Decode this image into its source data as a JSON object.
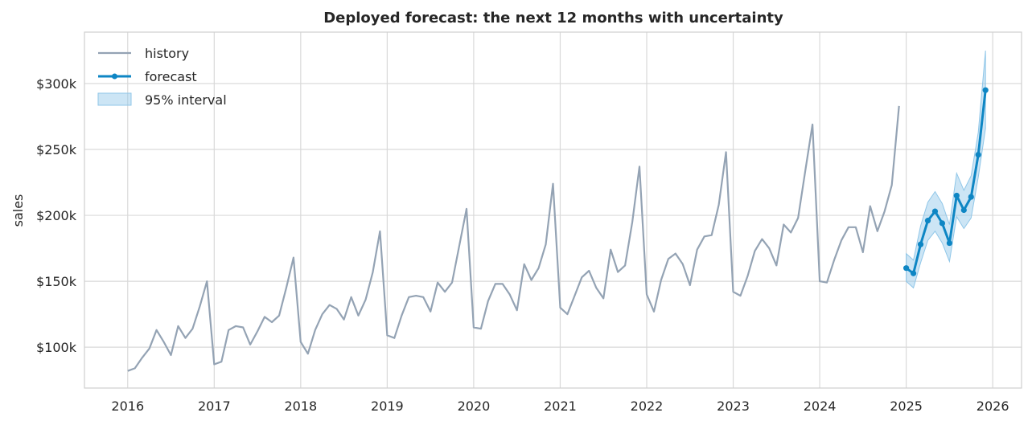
{
  "chart_data": {
    "type": "line",
    "title": "Deployed forecast: the next 12 months with uncertainty",
    "xlabel": "",
    "ylabel": "sales",
    "x_ticks": [
      "2016",
      "2017",
      "2018",
      "2019",
      "2020",
      "2021",
      "2022",
      "2023",
      "2024",
      "2025",
      "2026"
    ],
    "y_ticks": [
      {
        "value": 100000,
        "label": "$100k"
      },
      {
        "value": 150000,
        "label": "$150k"
      },
      {
        "value": 200000,
        "label": "$200k"
      },
      {
        "value": 250000,
        "label": "$250k"
      },
      {
        "value": 300000,
        "label": "$300k"
      }
    ],
    "xlim": [
      "2015-07",
      "2026-05"
    ],
    "ylim": [
      69000,
      339000
    ],
    "grid": true,
    "legend_position": "top-left",
    "colors": {
      "history": "#94a3b4",
      "forecast": "#0e86c4",
      "interval": "#8fc6e8"
    },
    "legend": [
      {
        "key": "history",
        "label": "history"
      },
      {
        "key": "forecast",
        "label": "forecast"
      },
      {
        "key": "interval",
        "label": "95% interval"
      }
    ],
    "history": {
      "name": "history",
      "start": "2016-01",
      "frequency": "monthly",
      "values": [
        82000,
        84000,
        92000,
        99000,
        113000,
        104000,
        94000,
        116000,
        107000,
        114000,
        131000,
        150000,
        87000,
        89000,
        113000,
        116000,
        115000,
        102000,
        112000,
        123000,
        119000,
        124000,
        145000,
        168000,
        104000,
        95000,
        113000,
        125000,
        132000,
        129000,
        121000,
        138000,
        124000,
        136000,
        157000,
        188000,
        109000,
        107000,
        124000,
        138000,
        139000,
        138000,
        127000,
        149000,
        142000,
        149000,
        177000,
        205000,
        115000,
        114000,
        135000,
        148000,
        148000,
        140000,
        128000,
        163000,
        151000,
        160000,
        178000,
        224000,
        130000,
        125000,
        139000,
        153000,
        158000,
        145000,
        137000,
        174000,
        157000,
        162000,
        195000,
        237000,
        140000,
        127000,
        151000,
        167000,
        171000,
        163000,
        147000,
        174000,
        184000,
        185000,
        208000,
        248000,
        142000,
        139000,
        154000,
        173000,
        182000,
        175000,
        162000,
        193000,
        187000,
        198000,
        234000,
        269000,
        150000,
        149000,
        166000,
        181000,
        191000,
        191000,
        172000,
        207000,
        188000,
        203000,
        223000,
        283000
      ]
    },
    "forecast": {
      "name": "forecast",
      "start": "2025-01",
      "frequency": "monthly",
      "values": [
        160000,
        156000,
        178000,
        196000,
        203000,
        194000,
        179000,
        215000,
        204000,
        214000,
        246000,
        295000
      ],
      "lower": [
        150000,
        145000,
        164000,
        181000,
        188000,
        179000,
        165000,
        199000,
        190000,
        198000,
        229000,
        266000
      ],
      "upper": [
        171000,
        166000,
        192000,
        210000,
        218000,
        209000,
        193000,
        232000,
        219000,
        230000,
        263000,
        325000
      ]
    }
  }
}
